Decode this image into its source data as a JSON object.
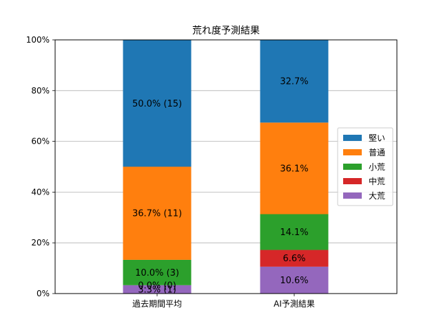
{
  "chart_data": {
    "type": "bar",
    "stacked": true,
    "title": "荒れ度予測結果",
    "xlabel": "",
    "ylabel": "",
    "ylim": [
      0,
      100
    ],
    "yticks": [
      "0%",
      "20%",
      "40%",
      "60%",
      "80%",
      "100%"
    ],
    "grid": "horizontal",
    "legend_position": "right",
    "categories": [
      "過去期間平均",
      "AI予測結果"
    ],
    "series": [
      {
        "name": "大荒",
        "color": "#9467bd",
        "values": [
          3.3,
          10.6
        ],
        "labels": [
          "3.3% (1)",
          "10.6%"
        ]
      },
      {
        "name": "中荒",
        "color": "#d62728",
        "values": [
          0.0,
          6.6
        ],
        "labels": [
          "0.0% (0)",
          "6.6%"
        ]
      },
      {
        "name": "小荒",
        "color": "#2ca02c",
        "values": [
          10.0,
          14.1
        ],
        "labels": [
          "10.0% (3)",
          "14.1%"
        ]
      },
      {
        "name": "普通",
        "color": "#ff7f0e",
        "values": [
          36.7,
          36.1
        ],
        "labels": [
          "36.7% (11)",
          "36.1%"
        ]
      },
      {
        "name": "堅い",
        "color": "#1f77b4",
        "values": [
          50.0,
          32.7
        ],
        "labels": [
          "50.0% (15)",
          "32.7%"
        ]
      }
    ],
    "legend_order": [
      "堅い",
      "普通",
      "小荒",
      "中荒",
      "大荒"
    ]
  }
}
